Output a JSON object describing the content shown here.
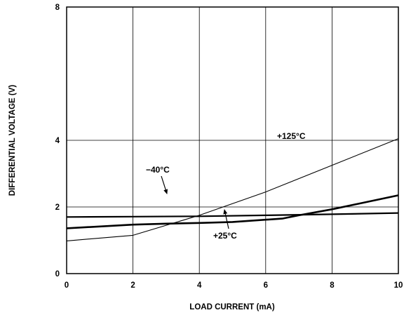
{
  "chart_data": {
    "type": "line",
    "title": "",
    "xlabel": "LOAD CURRENT (mA)",
    "ylabel": "DIFFERENTIAL VOLTAGE (V)",
    "xlim": [
      0,
      10
    ],
    "ylim": [
      0,
      8
    ],
    "x_ticks": [
      "0",
      "2",
      "4",
      "6",
      "8",
      "10"
    ],
    "y_ticks": [
      "0",
      "2",
      "4",
      "8"
    ],
    "grid": true,
    "series": [
      {
        "name": "+125°C",
        "x": [
          0,
          2,
          4,
          6,
          8,
          10
        ],
        "y": [
          0.98,
          1.15,
          1.75,
          2.45,
          3.25,
          4.05
        ]
      },
      {
        "name": "−40°C",
        "x": [
          0,
          2,
          4,
          6,
          8,
          10
        ],
        "y": [
          1.7,
          1.71,
          1.72,
          1.75,
          1.78,
          1.82
        ]
      },
      {
        "name": "+25°C",
        "x": [
          0,
          2,
          3,
          4,
          5,
          6.5,
          7,
          8,
          9,
          10
        ],
        "y": [
          1.36,
          1.47,
          1.5,
          1.52,
          1.55,
          1.65,
          1.75,
          1.93,
          2.14,
          2.35
        ]
      }
    ],
    "annotations": [
      {
        "text": "+125°C",
        "series": "+125°C"
      },
      {
        "text": "−40°C",
        "series": "−40°C"
      },
      {
        "text": "+25°C",
        "series": "+25°C"
      }
    ]
  }
}
